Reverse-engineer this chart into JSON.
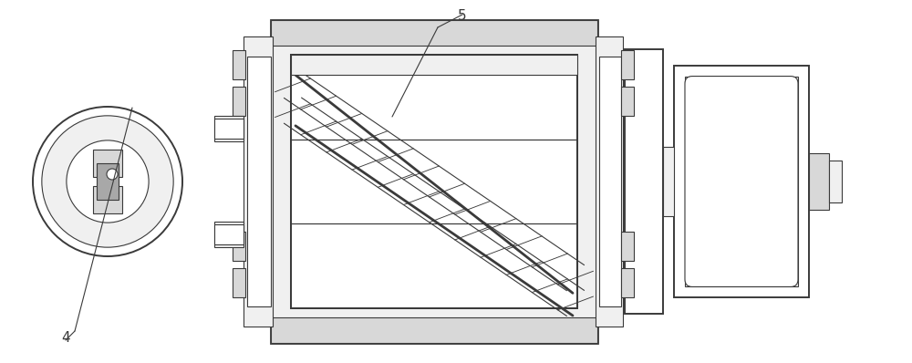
{
  "bg_color": "#ffffff",
  "line_color": "#3a3a3a",
  "light_fill": "#f0f0f0",
  "mid_fill": "#d8d8d8",
  "dark_fill": "#a8a8a8",
  "white_fill": "#ffffff",
  "figsize": [
    10.0,
    3.98
  ],
  "dpi": 100
}
